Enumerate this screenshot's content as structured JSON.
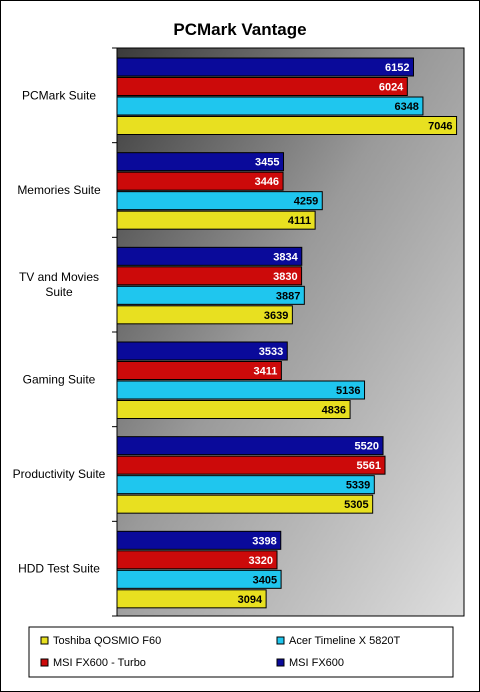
{
  "chart_data": {
    "type": "bar",
    "orientation": "horizontal",
    "title": "PCMark Vantage",
    "categories": [
      "PCMark Suite",
      "Memories Suite",
      "TV and Movies Suite",
      "Gaming Suite",
      "Productivity Suite",
      "HDD Test Suite"
    ],
    "category_lines": [
      [
        "PCMark Suite"
      ],
      [
        "Memories Suite"
      ],
      [
        "TV and Movies",
        "Suite"
      ],
      [
        "Gaming Suite"
      ],
      [
        "Productivity Suite"
      ],
      [
        "HDD Test Suite"
      ]
    ],
    "series": [
      {
        "name": "MSI FX600",
        "color": "#0a0a9a",
        "label_color": "#ffffff",
        "values": [
          6152,
          3455,
          3834,
          3533,
          5520,
          3398
        ]
      },
      {
        "name": "MSI FX600 - Turbo",
        "color": "#cc0a0a",
        "label_color": "#ffffff",
        "values": [
          6024,
          3446,
          3830,
          3411,
          5561,
          3320
        ]
      },
      {
        "name": "Acer Timeline X 5820T",
        "color": "#1fc6ee",
        "label_color": "#000000",
        "values": [
          6348,
          4259,
          3887,
          5136,
          5339,
          3405
        ]
      },
      {
        "name": "Toshiba QOSMIO F60",
        "color": "#e8e020",
        "label_color": "#000000",
        "values": [
          7046,
          4111,
          3639,
          4836,
          5305,
          3094
        ]
      }
    ],
    "legend_order": [
      "Toshiba QOSMIO F60",
      "Acer Timeline X 5820T",
      "MSI FX600 - Turbo",
      "MSI FX600"
    ],
    "xlim": [
      0,
      7200
    ],
    "legend_position": "bottom",
    "grid": false,
    "plot_background": "gradient dark-to-light gray"
  }
}
